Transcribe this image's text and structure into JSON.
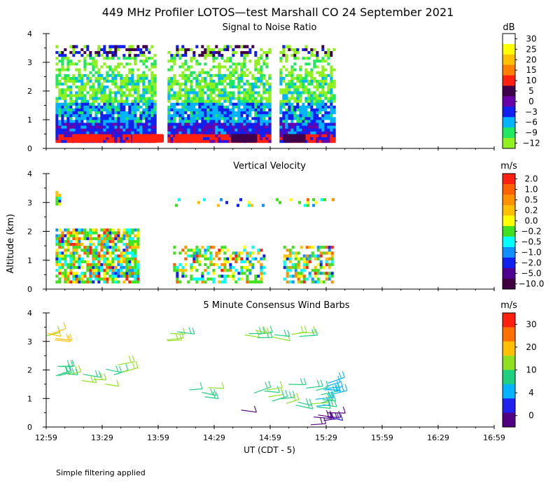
{
  "title": "449 MHz Profiler LOTOS—test Marshall CO 24 September 2021",
  "ylabel": "Altitude (km)",
  "xlabel": "UT  (CDT - 5)",
  "footnote": "Simple filtering applied",
  "x_ticks": [
    "12:59",
    "13:29",
    "13:59",
    "14:29",
    "14:59",
    "15:29",
    "15:59",
    "16:29",
    "16:59"
  ],
  "y_ticks": [
    "0",
    "1",
    "2",
    "3",
    "4"
  ],
  "chart_data": [
    {
      "type": "heatmap",
      "title": "Signal to Noise Ratio",
      "unit": "dB",
      "ylim": [
        0,
        4
      ],
      "xlim": [
        "12:59",
        "16:59"
      ],
      "colorbar_labels": [
        "30",
        "25",
        "20",
        "15",
        "10",
        "5",
        "0",
        "−3",
        "−6",
        "−9",
        "−12"
      ],
      "colors": [
        "#ffffff",
        "#ffff00",
        "#ffc000",
        "#ff8000",
        "#ff2010",
        "#40004a",
        "#6a00a8",
        "#1020f0",
        "#00b4ff",
        "#20e860",
        "#90f020"
      ],
      "data_blocks": [
        {
          "start": "13:04",
          "end": "13:58",
          "alt_range": [
            0.2,
            3.6
          ]
        },
        {
          "start": "14:04",
          "end": "14:58",
          "alt_range": [
            0.2,
            3.6
          ]
        },
        {
          "start": "15:04",
          "end": "15:33",
          "alt_range": [
            0.2,
            3.6
          ]
        }
      ]
    },
    {
      "type": "heatmap",
      "title": "Vertical Velocity",
      "unit": "m/s",
      "ylim": [
        0,
        4
      ],
      "xlim": [
        "12:59",
        "16:59"
      ],
      "colorbar_labels": [
        "2.0",
        "1.0",
        "0.5",
        "0.2",
        "0.0",
        "−0.2",
        "−0.5",
        "−1.0",
        "−2.0",
        "−5.0",
        "−10.0"
      ],
      "colors": [
        "#ff2010",
        "#ff6000",
        "#ff9000",
        "#ffc000",
        "#ffff00",
        "#40e020",
        "#00ffff",
        "#1090ff",
        "#1020f0",
        "#500090",
        "#400040"
      ]
    },
    {
      "type": "scatter",
      "title": "5 Minute Consensus Wind Barbs",
      "unit": "m/s",
      "ylim": [
        0,
        4
      ],
      "xlim": [
        "12:59",
        "16:59"
      ],
      "colorbar_labels": [
        "30",
        "20",
        "10",
        "4",
        "0"
      ],
      "colors": [
        "#ff2010",
        "#ff7000",
        "#ffc000",
        "#90e020",
        "#20d080",
        "#00b4ff",
        "#2020f0",
        "#500080"
      ]
    }
  ]
}
